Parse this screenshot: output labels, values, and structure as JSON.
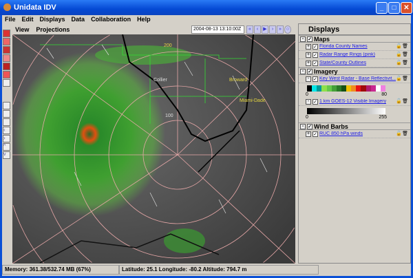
{
  "window": {
    "title": "Unidata IDV",
    "controls": [
      "minimize",
      "maximize",
      "close"
    ]
  },
  "menu": [
    "File",
    "Edit",
    "Displays",
    "Data",
    "Collaboration",
    "Help"
  ],
  "view_menu": [
    "View",
    "Projections"
  ],
  "time": {
    "current": "2004-08-13 13:10:00Z"
  },
  "animation_buttons": [
    "first",
    "step-back",
    "play",
    "step-forward",
    "last",
    "settings"
  ],
  "map": {
    "labels": {
      "collier": "Collier",
      "broward": "Broward",
      "miami_dade": "Miami-Dade",
      "ring200": "200",
      "ring100": "100"
    },
    "ring_color": "#e8a8a8",
    "county_color": "#33dd33"
  },
  "displays": {
    "title": "Displays",
    "groups": [
      {
        "name": "Maps",
        "items": [
          "Florida County Names",
          "Radar Range Rings (pink)",
          "State/County Outlines"
        ]
      },
      {
        "name": "Imagery",
        "items": [
          "Key West Radar - Base Reflectivit...",
          "1 km GOES-12 Visible Imagery"
        ]
      },
      {
        "name": "Wind Barbs",
        "items": [
          "RUC 850 hPa winds"
        ]
      }
    ],
    "radar_scale": {
      "min": "0",
      "max": "80",
      "colors": [
        "#000000",
        "#00e5e5",
        "#009999",
        "#8ee04a",
        "#66c84a",
        "#44a038",
        "#2a7a28",
        "#145014",
        "#f0c000",
        "#f08c1e",
        "#e81414",
        "#a00a0a",
        "#b01c6e",
        "#c82890",
        "#ffffff",
        "#f080e0"
      ]
    },
    "vis_scale": {
      "min": "0",
      "max": "255"
    }
  },
  "status": {
    "memory": "Memory: 361.38/532.74 MB (67%)",
    "position": "Latitude:  25.1 Longitude:  -80.2 Altitude: 794.7 m"
  }
}
